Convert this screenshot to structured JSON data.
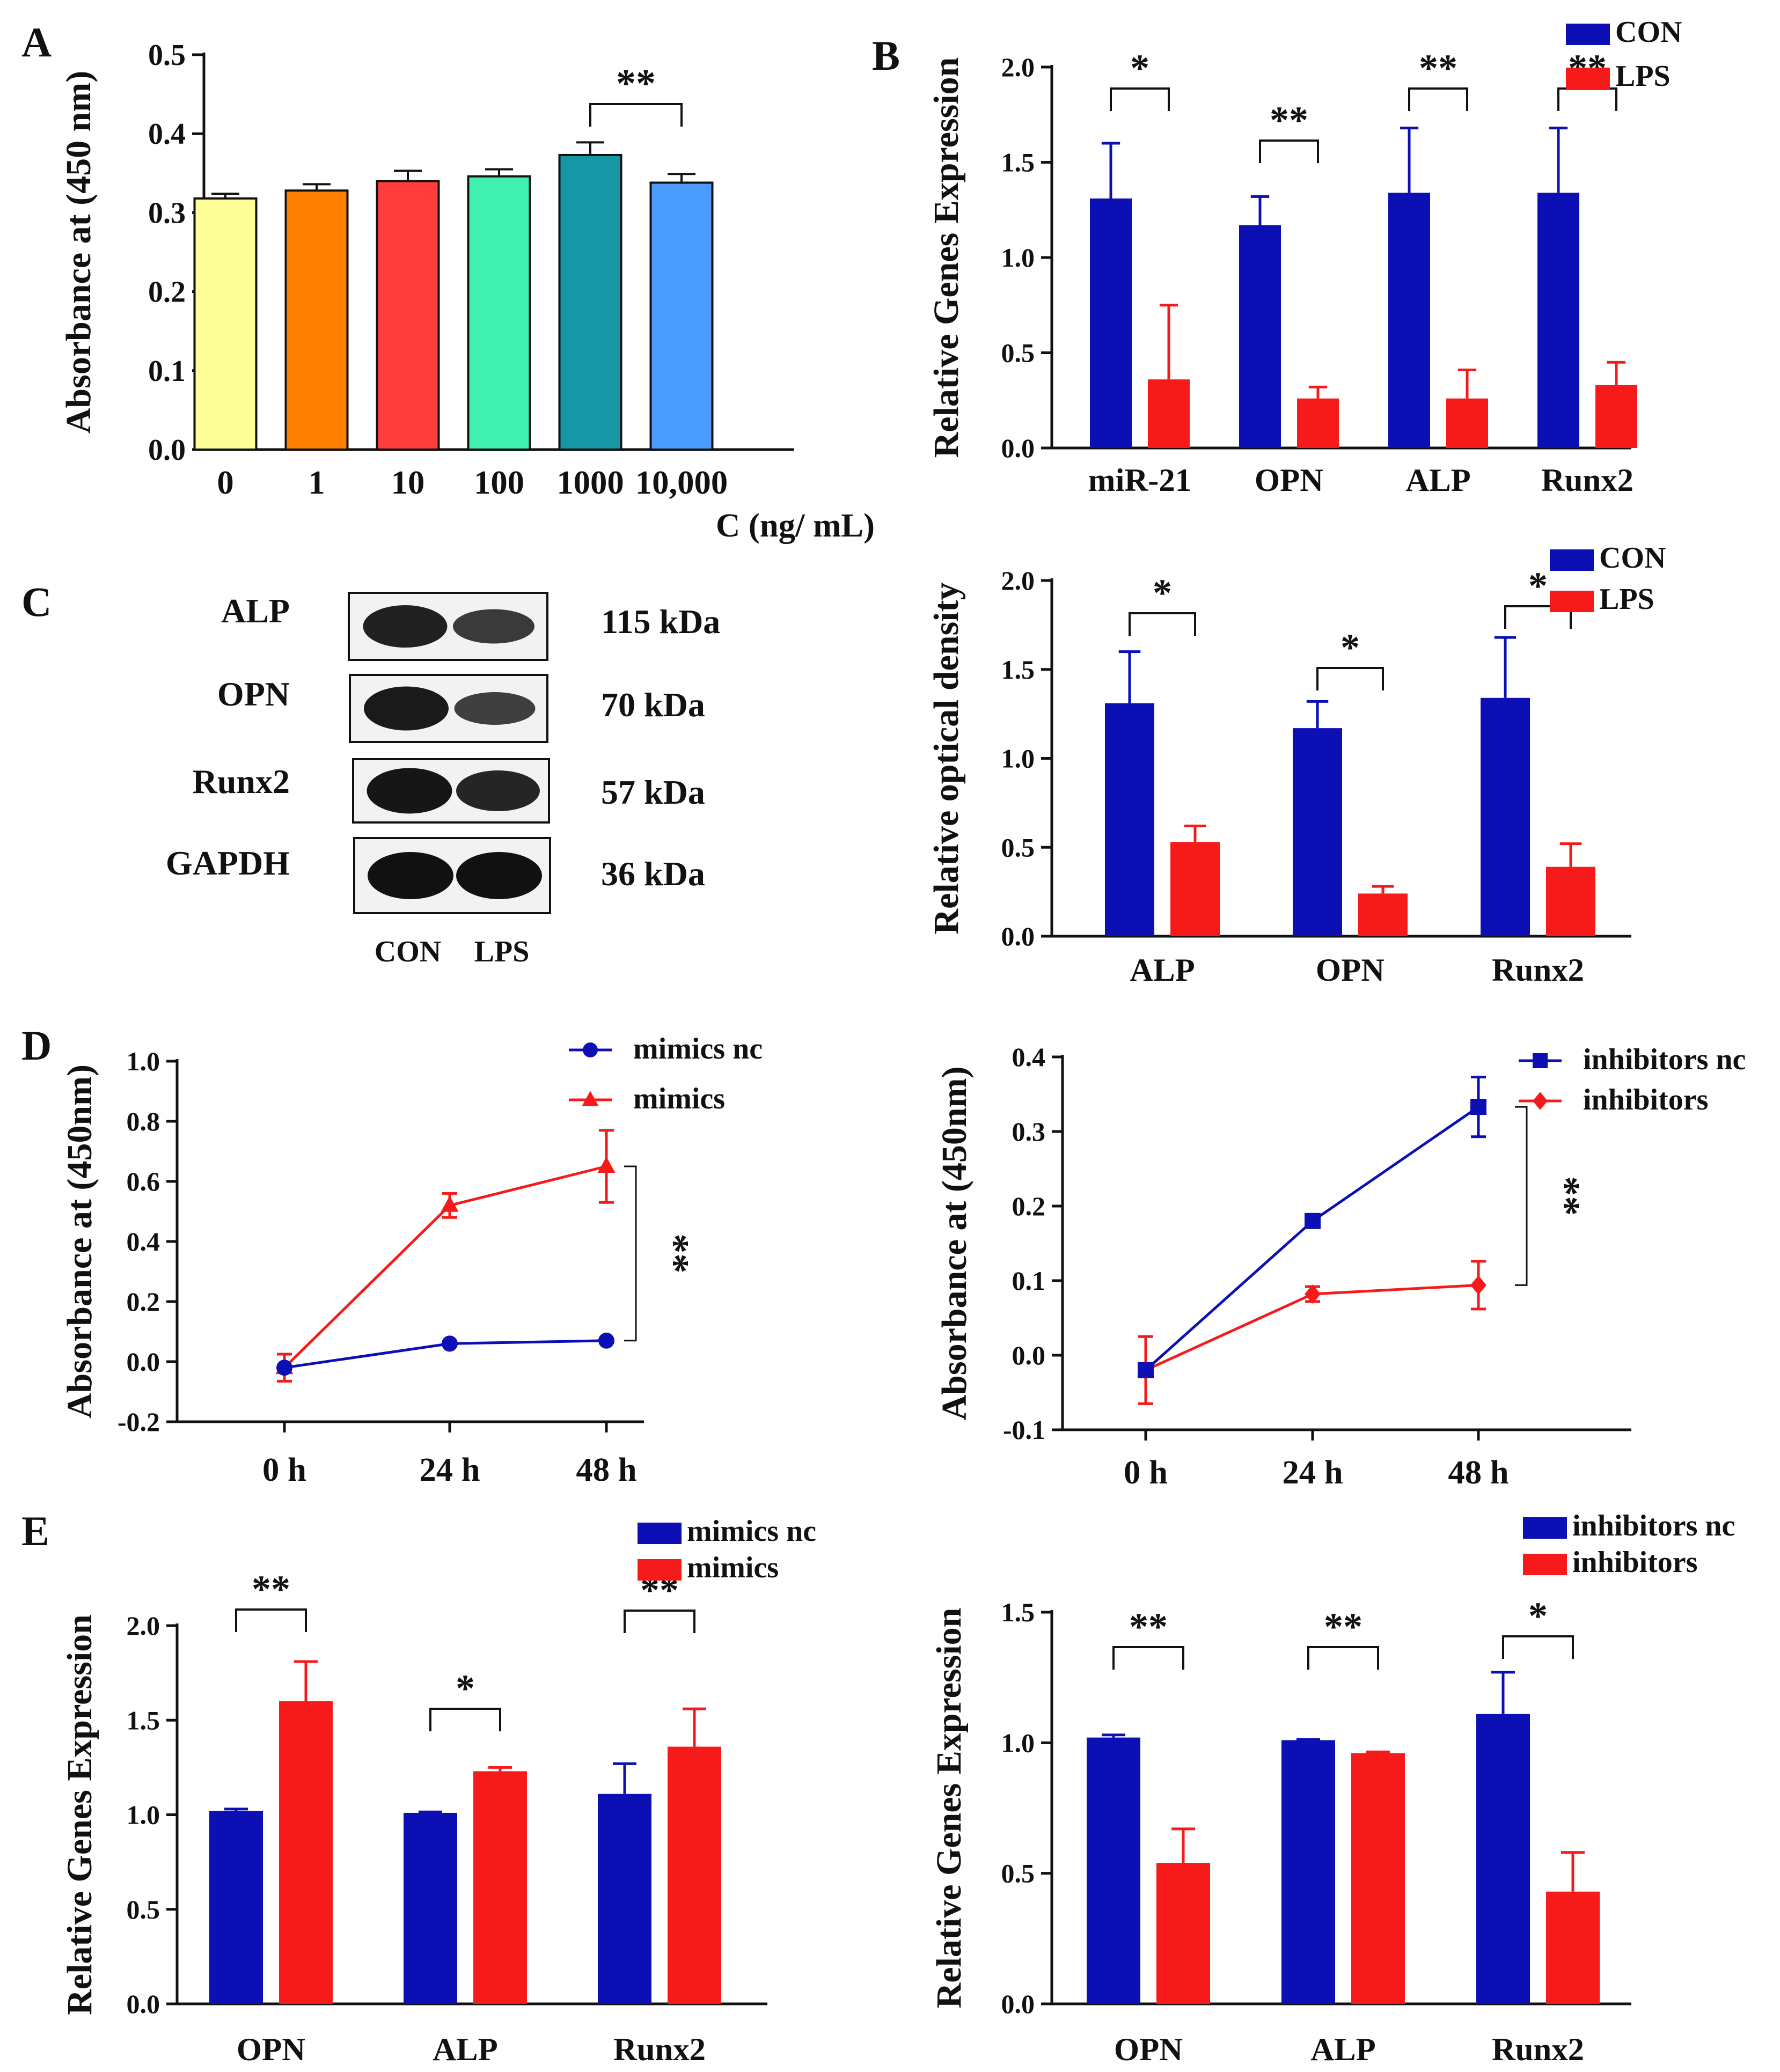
{
  "colors": {
    "blue": "#0b0fb4",
    "red": "#f71a1a",
    "teal": "#1597a6",
    "axis": "#111111"
  },
  "chart_data": [
    {
      "id": "A",
      "type": "bar",
      "panel_label": "A",
      "ylabel": "Absorbance at (450 nm)",
      "xlabel": "C (ng/ mL)",
      "ylim": [
        0,
        0.5
      ],
      "yticks": [
        0.0,
        0.1,
        0.2,
        0.3,
        0.4,
        0.5
      ],
      "ytick_labels": [
        "0.0",
        "0.1",
        "0.2",
        "0.3",
        "0.4",
        "0.5"
      ],
      "categories": [
        "0",
        "1",
        "10",
        "100",
        "1000",
        "10,000"
      ],
      "series": [
        {
          "name": "Absorbance",
          "values": [
            0.318,
            0.328,
            0.34,
            0.346,
            0.373,
            0.338
          ],
          "errors": [
            0.006,
            0.008,
            0.013,
            0.009,
            0.016,
            0.011
          ],
          "colors": [
            "#feff99",
            "#ff7f00",
            "#ff3b3b",
            "#3ff0b0",
            "#1597a6",
            "#4a9dff"
          ]
        }
      ],
      "significance": [
        {
          "from": 4,
          "to": 5,
          "label": "**"
        }
      ]
    },
    {
      "id": "B",
      "type": "bar",
      "panel_label": "B",
      "ylabel": "Relative Genes Expression",
      "ylim": [
        0,
        2.0
      ],
      "yticks": [
        0.0,
        0.5,
        1.0,
        1.5,
        2.0
      ],
      "ytick_labels": [
        "0.0",
        "0.5",
        "1.0",
        "1.5",
        "2.0"
      ],
      "categories": [
        "miR-21",
        "OPN",
        "ALP",
        "Runx2"
      ],
      "series": [
        {
          "name": "CON",
          "values": [
            1.31,
            1.17,
            1.34,
            1.34
          ],
          "errors": [
            0.29,
            0.15,
            0.34,
            0.34
          ]
        },
        {
          "name": "LPS",
          "values": [
            0.36,
            0.26,
            0.26,
            0.33
          ],
          "errors": [
            0.39,
            0.06,
            0.15,
            0.12
          ]
        }
      ],
      "significance": [
        "*",
        "**",
        "**",
        "**"
      ]
    },
    {
      "id": "C",
      "type": "bar",
      "ylabel": "Relative optical  density",
      "ylim": [
        0,
        2.0
      ],
      "yticks": [
        0.0,
        0.5,
        1.0,
        1.5,
        2.0
      ],
      "ytick_labels": [
        "0.0",
        "0.5",
        "1.0",
        "1.5",
        "2.0"
      ],
      "categories": [
        "ALP",
        "OPN",
        "Runx2"
      ],
      "series": [
        {
          "name": "CON",
          "values": [
            1.31,
            1.17,
            1.34
          ],
          "errors": [
            0.29,
            0.15,
            0.34
          ]
        },
        {
          "name": "LPS",
          "values": [
            0.53,
            0.24,
            0.39
          ],
          "errors": [
            0.09,
            0.04,
            0.13
          ]
        }
      ],
      "significance": [
        "*",
        "*",
        "*"
      ]
    },
    {
      "id": "D1",
      "type": "line",
      "panel_label": "D",
      "ylabel": "Absorbance at (450nm)",
      "ylim": [
        -0.2,
        1.0
      ],
      "yticks": [
        -0.2,
        0.0,
        0.2,
        0.4,
        0.6,
        0.8,
        1.0
      ],
      "ytick_labels": [
        "-0.2",
        "0.0",
        "0.2",
        "0.4",
        "0.6",
        "0.8",
        "1.0"
      ],
      "x": [
        "0 h",
        "24 h",
        "48 h"
      ],
      "series": [
        {
          "name": "mimics nc",
          "marker": "circle",
          "values": [
            -0.02,
            0.06,
            0.07
          ],
          "errors": [
            0.0,
            0.0,
            0.0
          ]
        },
        {
          "name": "mimics",
          "marker": "triangle",
          "values": [
            -0.02,
            0.52,
            0.65
          ],
          "errors": [
            0.045,
            0.04,
            0.12
          ]
        }
      ],
      "significance": "**"
    },
    {
      "id": "D2",
      "type": "line",
      "ylabel": "Absorbance at (450nm)",
      "ylim": [
        -0.1,
        0.4
      ],
      "yticks": [
        -0.1,
        0.0,
        0.1,
        0.2,
        0.3,
        0.4
      ],
      "ytick_labels": [
        "-0.1",
        "0.0",
        "0.1",
        "0.2",
        "0.3",
        "0.4"
      ],
      "x": [
        "0 h",
        "24 h",
        "48 h"
      ],
      "series": [
        {
          "name": "inhibitors nc",
          "marker": "square",
          "values": [
            -0.02,
            0.18,
            0.333
          ],
          "errors": [
            0.0,
            0.0,
            0.04
          ]
        },
        {
          "name": "inhibitors",
          "marker": "diamond",
          "values": [
            -0.02,
            0.082,
            0.094
          ],
          "errors": [
            0.045,
            0.01,
            0.032
          ]
        }
      ],
      "significance": "**"
    },
    {
      "id": "E1",
      "type": "bar",
      "panel_label": "E",
      "ylabel": "Relative Genes Expression",
      "ylim": [
        0,
        2.0
      ],
      "yticks": [
        0.0,
        0.5,
        1.0,
        1.5,
        2.0
      ],
      "ytick_labels": [
        "0.0",
        "0.5",
        "1.0",
        "1.5",
        "2.0"
      ],
      "categories": [
        "OPN",
        "ALP",
        "Runx2"
      ],
      "series": [
        {
          "name": "mimics nc",
          "values": [
            1.02,
            1.01,
            1.11
          ],
          "errors": [
            0.01,
            0.005,
            0.16
          ]
        },
        {
          "name": "mimics",
          "values": [
            1.6,
            1.23,
            1.36
          ],
          "errors": [
            0.21,
            0.02,
            0.2
          ]
        }
      ],
      "significance": [
        "**",
        "*",
        "**"
      ]
    },
    {
      "id": "E2",
      "type": "bar",
      "ylabel": "Relative Genes Expression",
      "ylim": [
        0,
        1.5
      ],
      "yticks": [
        0.0,
        0.5,
        1.0,
        1.5
      ],
      "ytick_labels": [
        "0.0",
        "0.5",
        "1.0",
        "1.5"
      ],
      "categories": [
        "OPN",
        "ALP",
        "Runx2"
      ],
      "series": [
        {
          "name": "inhibitors nc",
          "values": [
            1.02,
            1.01,
            1.11
          ],
          "errors": [
            0.01,
            0.003,
            0.16
          ]
        },
        {
          "name": "inhibitors",
          "values": [
            0.54,
            0.96,
            0.43
          ],
          "errors": [
            0.13,
            0.005,
            0.15
          ]
        }
      ],
      "significance": [
        "**",
        "**",
        "*"
      ]
    }
  ],
  "western_blot": {
    "panel_label": "C",
    "rows": [
      {
        "protein": "ALP",
        "kda": "115 kDa",
        "con_intensity": 0.85,
        "lps_intensity": 0.6
      },
      {
        "protein": "OPN",
        "kda": "70 kDa",
        "con_intensity": 0.9,
        "lps_intensity": 0.55
      },
      {
        "protein": "Runx2",
        "kda": "57 kDa",
        "con_intensity": 0.95,
        "lps_intensity": 0.8
      },
      {
        "protein": "GAPDH",
        "kda": "36 kDa",
        "con_intensity": 1.0,
        "lps_intensity": 1.0
      }
    ],
    "lanes": [
      "CON",
      "LPS"
    ]
  }
}
